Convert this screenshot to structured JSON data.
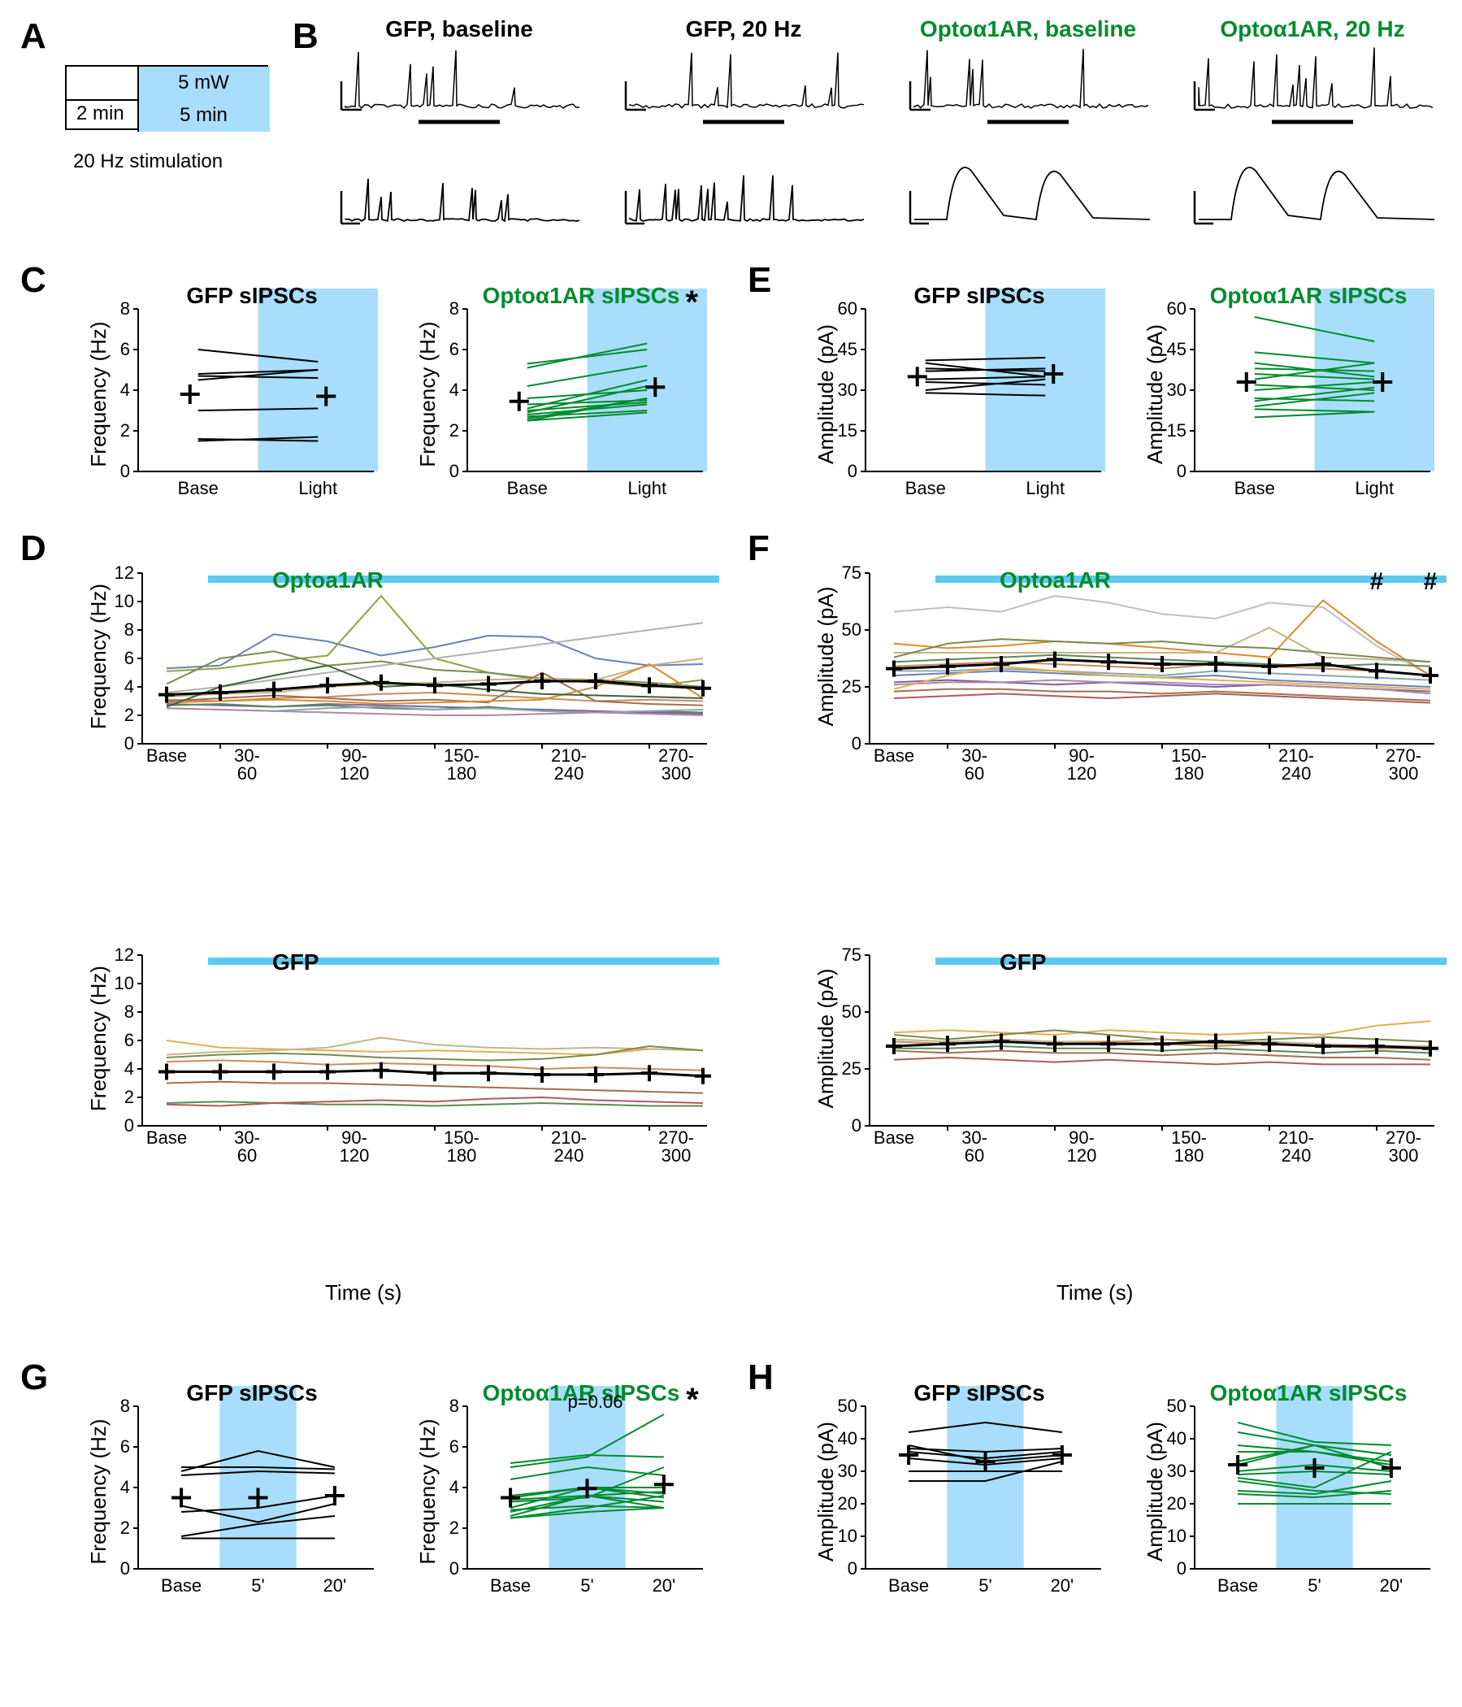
{
  "labels": {
    "A": "A",
    "B": "B",
    "C": "C",
    "D": "D",
    "E": "E",
    "F": "F",
    "G": "G",
    "H": "H"
  },
  "panelA": {
    "top": "5 mW",
    "bottom": "5 min",
    "baseline": "2 min",
    "caption": "20 Hz stimulation",
    "fill": "#a8defb"
  },
  "panelB": {
    "titles": [
      "GFP, baseline",
      "GFP, 20 Hz",
      "Optoα1AR, baseline",
      "Optoα1AR, 20 Hz"
    ],
    "title_colors": [
      "#000000",
      "#000000",
      "#008b2e",
      "#008b2e"
    ],
    "trace_color": "#000000"
  },
  "freq_axis": {
    "label": "Frequency (Hz)",
    "min": 0,
    "max": 8,
    "step": 2
  },
  "freq_axis_D": {
    "label": "Frequency (Hz)",
    "min": 0,
    "max": 12,
    "step": 2
  },
  "amp_axis_CE": {
    "label": "Amplitude (pA)",
    "min": 0,
    "max": 60,
    "step": 15
  },
  "amp_axis_F": {
    "label": "Amplitude (pA)",
    "min": 0,
    "max": 75,
    "step": 25
  },
  "amp_axis_H": {
    "label": "Amplitude (pA)",
    "min": 0,
    "max": 50,
    "step": 10
  },
  "x_BL": [
    "Base",
    "Light"
  ],
  "x_time": {
    "label": "Time (s)",
    "ticks": [
      "Base",
      "30-\n60",
      "90-\n120",
      "150-\n180",
      "210-\n240",
      "270-\n300"
    ]
  },
  "x_G": [
    "Base",
    "5'",
    "20'"
  ],
  "panelC": {
    "gfp": {
      "title": "GFP sIPSCs",
      "color": "#000000",
      "pairs": [
        [
          6.0,
          5.4
        ],
        [
          4.8,
          5.0
        ],
        [
          4.7,
          4.6
        ],
        [
          4.5,
          5.0
        ],
        [
          3.0,
          3.1
        ],
        [
          1.6,
          1.5
        ],
        [
          1.5,
          1.7
        ]
      ],
      "mean": [
        3.8,
        3.7
      ]
    },
    "opto": {
      "title": "Optoα1AR sIPSCs",
      "color": "#008b2e",
      "pairs": [
        [
          5.3,
          6.0
        ],
        [
          5.1,
          6.3
        ],
        [
          4.2,
          5.2
        ],
        [
          3.6,
          4.0
        ],
        [
          3.3,
          3.5
        ],
        [
          3.1,
          4.5
        ],
        [
          3.0,
          3.4
        ],
        [
          2.9,
          4.2
        ],
        [
          2.8,
          3.3
        ],
        [
          2.7,
          3.0
        ],
        [
          2.6,
          3.6
        ],
        [
          2.5,
          2.9
        ],
        [
          2.5,
          3.6
        ]
      ],
      "mean": [
        3.45,
        4.15
      ],
      "sig": "*"
    }
  },
  "panelE": {
    "gfp": {
      "title": "GFP sIPSCs",
      "color": "#000000",
      "pairs": [
        [
          41,
          42
        ],
        [
          40,
          35
        ],
        [
          38,
          37
        ],
        [
          37,
          38
        ],
        [
          34,
          35
        ],
        [
          33,
          32
        ],
        [
          30,
          34
        ],
        [
          29,
          28
        ]
      ],
      "mean": [
        35,
        36
      ]
    },
    "opto": {
      "title": "Optoα1AR sIPSCs",
      "color": "#008b2e",
      "pairs": [
        [
          57,
          48
        ],
        [
          44,
          40
        ],
        [
          40,
          35
        ],
        [
          38,
          37
        ],
        [
          36,
          34
        ],
        [
          34,
          40
        ],
        [
          32,
          30
        ],
        [
          30,
          33
        ],
        [
          27,
          26
        ],
        [
          26,
          31
        ],
        [
          24,
          29
        ],
        [
          23,
          22
        ],
        [
          20,
          22
        ]
      ],
      "mean": [
        33,
        33
      ]
    }
  },
  "panelD": {
    "opto": {
      "title": "Optoa1AR",
      "title_color": "#008b2e",
      "series": [
        {
          "c": "#6b7fb8",
          "v": [
            5.3,
            5.5,
            7.7,
            7.2,
            6.2,
            6.8,
            7.6,
            7.5,
            6.0,
            5.5,
            5.6
          ]
        },
        {
          "c": "#8fa042",
          "v": [
            5.1,
            5.3,
            5.8,
            6.2,
            10.4,
            6.0,
            5.0,
            4.5,
            4.3,
            4.0,
            4.5
          ]
        },
        {
          "c": "#7a8a4e",
          "v": [
            4.2,
            6.0,
            6.5,
            5.5,
            5.8,
            5.2,
            5.0,
            4.6,
            4.5,
            4.3,
            4.0
          ]
        },
        {
          "c": "#b0b0b0",
          "v": [
            3.6,
            4.0,
            4.5,
            5.0,
            5.5,
            6.0,
            6.5,
            7.0,
            7.5,
            8.0,
            8.5
          ]
        },
        {
          "c": "#c5b48a",
          "v": [
            3.3,
            3.5,
            3.6,
            4.0,
            4.2,
            4.3,
            4.5,
            4.6,
            4.5,
            5.5,
            6.0
          ]
        },
        {
          "c": "#c88c5a",
          "v": [
            3.1,
            3.0,
            3.2,
            3.3,
            3.5,
            3.6,
            3.4,
            3.2,
            3.0,
            3.1,
            3.0
          ]
        },
        {
          "c": "#a07050",
          "v": [
            3.0,
            3.2,
            3.4,
            3.2,
            3.0,
            3.1,
            2.9,
            5.0,
            3.0,
            2.8,
            2.7
          ]
        },
        {
          "c": "#d88c2e",
          "v": [
            2.9,
            3.0,
            3.1,
            3.0,
            2.8,
            2.9,
            3.0,
            3.1,
            4.0,
            5.6,
            3.2
          ]
        },
        {
          "c": "#7e60a8",
          "v": [
            2.8,
            2.7,
            2.6,
            2.8,
            2.7,
            2.6,
            2.5,
            2.4,
            2.3,
            2.2,
            2.1
          ]
        },
        {
          "c": "#5a8a5a",
          "v": [
            2.7,
            2.8,
            2.6,
            2.7,
            2.5,
            2.4,
            2.6,
            2.3,
            2.2,
            2.3,
            2.2
          ]
        },
        {
          "c": "#3f5f3f",
          "v": [
            2.6,
            4.0,
            4.8,
            5.5,
            4.0,
            4.2,
            3.8,
            3.5,
            3.4,
            3.3,
            3.2
          ]
        },
        {
          "c": "#8aa6b0",
          "v": [
            2.5,
            2.4,
            2.3,
            2.5,
            2.6,
            2.4,
            2.5,
            2.3,
            2.2,
            2.3,
            2.4
          ]
        },
        {
          "c": "#b08aa0",
          "v": [
            2.5,
            2.4,
            2.3,
            2.2,
            2.1,
            2.0,
            2.0,
            2.1,
            2.2,
            2.1,
            2.0
          ]
        }
      ],
      "mean": [
        3.45,
        3.6,
        3.8,
        4.1,
        4.3,
        4.1,
        4.2,
        4.4,
        4.4,
        4.1,
        3.9
      ]
    },
    "gfp": {
      "title": "GFP",
      "title_color": "#000000",
      "series": [
        {
          "c": "#e0b050",
          "v": [
            6.0,
            5.5,
            5.4,
            5.3,
            5.2,
            5.3,
            5.2,
            5.1,
            5.0,
            5.4,
            5.3
          ]
        },
        {
          "c": "#c5b48a",
          "v": [
            5.0,
            5.2,
            5.3,
            5.5,
            6.2,
            5.7,
            5.5,
            5.4,
            5.5,
            5.4,
            5.3
          ]
        },
        {
          "c": "#7a8a4e",
          "v": [
            4.8,
            5.0,
            5.1,
            5.0,
            4.8,
            4.7,
            4.6,
            4.7,
            5.0,
            5.6,
            5.3
          ]
        },
        {
          "c": "#c88c5a",
          "v": [
            4.5,
            4.6,
            4.5,
            4.3,
            4.4,
            4.3,
            4.2,
            4.0,
            4.1,
            4.0,
            3.9
          ]
        },
        {
          "c": "#a07050",
          "v": [
            3.0,
            3.1,
            3.0,
            3.0,
            2.9,
            2.8,
            2.7,
            2.6,
            2.5,
            2.4,
            2.3
          ]
        },
        {
          "c": "#5a8a5a",
          "v": [
            1.6,
            1.7,
            1.6,
            1.5,
            1.5,
            1.4,
            1.5,
            1.6,
            1.5,
            1.4,
            1.4
          ]
        },
        {
          "c": "#b05a5a",
          "v": [
            1.5,
            1.4,
            1.6,
            1.7,
            1.8,
            1.7,
            1.9,
            2.0,
            1.8,
            1.7,
            1.6
          ]
        }
      ],
      "mean": [
        3.8,
        3.8,
        3.8,
        3.8,
        3.9,
        3.7,
        3.7,
        3.6,
        3.6,
        3.7,
        3.5
      ]
    }
  },
  "panelF": {
    "opto": {
      "title": "Optoa1AR",
      "title_color": "#008b2e",
      "sig_marks": [
        "#",
        "#"
      ],
      "series": [
        {
          "c": "#c0c0c0",
          "v": [
            58,
            60,
            58,
            65,
            62,
            57,
            55,
            62,
            60,
            43,
            30
          ]
        },
        {
          "c": "#d88c2e",
          "v": [
            44,
            42,
            43,
            45,
            44,
            42,
            40,
            38,
            63,
            45,
            30
          ]
        },
        {
          "c": "#c5b48a",
          "v": [
            40,
            40,
            40,
            40,
            40,
            40,
            40,
            51,
            38,
            37,
            36
          ]
        },
        {
          "c": "#7a8a4e",
          "v": [
            38,
            44,
            46,
            45,
            44,
            45,
            43,
            42,
            40,
            38,
            36
          ]
        },
        {
          "c": "#5a8a5a",
          "v": [
            36,
            37,
            38,
            39,
            38,
            37,
            36,
            35,
            34,
            35,
            34
          ]
        },
        {
          "c": "#c88c5a",
          "v": [
            34,
            35,
            36,
            35,
            34,
            33,
            35,
            34,
            33,
            32,
            30
          ]
        },
        {
          "c": "#8aa6b0",
          "v": [
            32,
            32,
            33,
            32,
            31,
            30,
            32,
            31,
            30,
            29,
            28
          ]
        },
        {
          "c": "#6b7fb8",
          "v": [
            30,
            31,
            32,
            31,
            30,
            29,
            30,
            28,
            27,
            26,
            25
          ]
        },
        {
          "c": "#7e60a8",
          "v": [
            27,
            28,
            27,
            26,
            27,
            26,
            25,
            26,
            25,
            24,
            23
          ]
        },
        {
          "c": "#b08aa0",
          "v": [
            26,
            27,
            27,
            28,
            27,
            27,
            26,
            26,
            25,
            24,
            22
          ]
        },
        {
          "c": "#e0b050",
          "v": [
            24,
            30,
            34,
            32,
            30,
            29,
            28,
            27,
            26,
            25,
            24
          ]
        },
        {
          "c": "#a07050",
          "v": [
            23,
            24,
            24,
            23,
            23,
            22,
            23,
            22,
            21,
            20,
            19
          ]
        },
        {
          "c": "#b05a5a",
          "v": [
            20,
            21,
            22,
            21,
            20,
            21,
            22,
            21,
            20,
            19,
            18
          ]
        }
      ],
      "mean": [
        33,
        34,
        35,
        37,
        36,
        35,
        35,
        34,
        35,
        32,
        30
      ]
    },
    "gfp": {
      "title": "GFP",
      "title_color": "#000000",
      "series": [
        {
          "c": "#e0b050",
          "v": [
            41,
            42,
            41,
            40,
            42,
            41,
            40,
            41,
            40,
            44,
            46
          ]
        },
        {
          "c": "#7a8a4e",
          "v": [
            40,
            38,
            40,
            42,
            40,
            38,
            37,
            38,
            39,
            38,
            37
          ]
        },
        {
          "c": "#c5b48a",
          "v": [
            38,
            37,
            38,
            37,
            37,
            38,
            36,
            37,
            36,
            35,
            35
          ]
        },
        {
          "c": "#c88c5a",
          "v": [
            37,
            36,
            37,
            36,
            37,
            36,
            35,
            36,
            35,
            34,
            34
          ]
        },
        {
          "c": "#5a8a5a",
          "v": [
            34,
            34,
            35,
            34,
            34,
            33,
            34,
            33,
            32,
            33,
            32
          ]
        },
        {
          "c": "#a07050",
          "v": [
            33,
            32,
            33,
            32,
            32,
            31,
            32,
            31,
            30,
            30,
            29
          ]
        },
        {
          "c": "#b05a5a",
          "v": [
            29,
            30,
            29,
            28,
            29,
            28,
            27,
            28,
            27,
            27,
            27
          ]
        }
      ],
      "mean": [
        35,
        36,
        37,
        36,
        36,
        36,
        37,
        36,
        35,
        35,
        34
      ]
    }
  },
  "panelG": {
    "gfp": {
      "title": "GFP sIPSCs",
      "color": "#000000",
      "triples": [
        [
          5.0,
          5.0,
          4.9
        ],
        [
          4.8,
          5.8,
          5.0
        ],
        [
          4.6,
          4.8,
          4.7
        ],
        [
          3.1,
          2.3,
          3.2
        ],
        [
          2.8,
          3.0,
          3.6
        ],
        [
          1.6,
          2.2,
          2.6
        ],
        [
          1.5,
          1.5,
          1.5
        ]
      ],
      "mean": [
        3.5,
        3.5,
        3.6
      ]
    },
    "opto": {
      "title": "Optoα1AR sIPSCs",
      "color": "#008b2e",
      "note": "p=0.06",
      "sig": "*",
      "triples": [
        [
          5.2,
          5.6,
          5.5
        ],
        [
          5.0,
          5.5,
          7.6
        ],
        [
          4.4,
          5.0,
          4.6
        ],
        [
          3.6,
          4.0,
          3.7
        ],
        [
          3.5,
          4.0,
          4.0
        ],
        [
          3.4,
          3.6,
          3.8
        ],
        [
          3.3,
          3.5,
          5.0
        ],
        [
          3.0,
          4.0,
          3.5
        ],
        [
          2.9,
          3.1,
          3.0
        ],
        [
          2.8,
          3.6,
          3.0
        ],
        [
          2.6,
          3.6,
          3.3
        ],
        [
          2.5,
          3.0,
          3.6
        ],
        [
          2.5,
          2.8,
          3.0
        ]
      ],
      "mean": [
        3.5,
        3.95,
        4.15
      ]
    }
  },
  "panelH": {
    "gfp": {
      "title": "GFP sIPSCs",
      "color": "#000000",
      "triples": [
        [
          42,
          45,
          42
        ],
        [
          38,
          33,
          35
        ],
        [
          37,
          36,
          37
        ],
        [
          36,
          34,
          36
        ],
        [
          34,
          32,
          34
        ],
        [
          30,
          30,
          30
        ],
        [
          27,
          27,
          33
        ]
      ],
      "mean": [
        35,
        33,
        35
      ]
    },
    "opto": {
      "title": "Optoα1AR sIPSCs",
      "color": "#008b2e",
      "triples": [
        [
          45,
          39,
          38
        ],
        [
          42,
          38,
          35
        ],
        [
          38,
          36,
          33
        ],
        [
          36,
          36,
          32
        ],
        [
          33,
          38,
          31
        ],
        [
          32,
          38,
          35
        ],
        [
          30,
          32,
          30
        ],
        [
          29,
          30,
          29
        ],
        [
          28,
          25,
          36
        ],
        [
          27,
          24,
          23
        ],
        [
          24,
          23,
          27
        ],
        [
          23,
          22,
          24
        ],
        [
          20,
          20,
          20
        ]
      ],
      "mean": [
        32,
        31,
        31
      ]
    }
  },
  "colors": {
    "lightblue": "#a8defb",
    "lightbar": "#5dcaf2",
    "mean": "#000000"
  }
}
